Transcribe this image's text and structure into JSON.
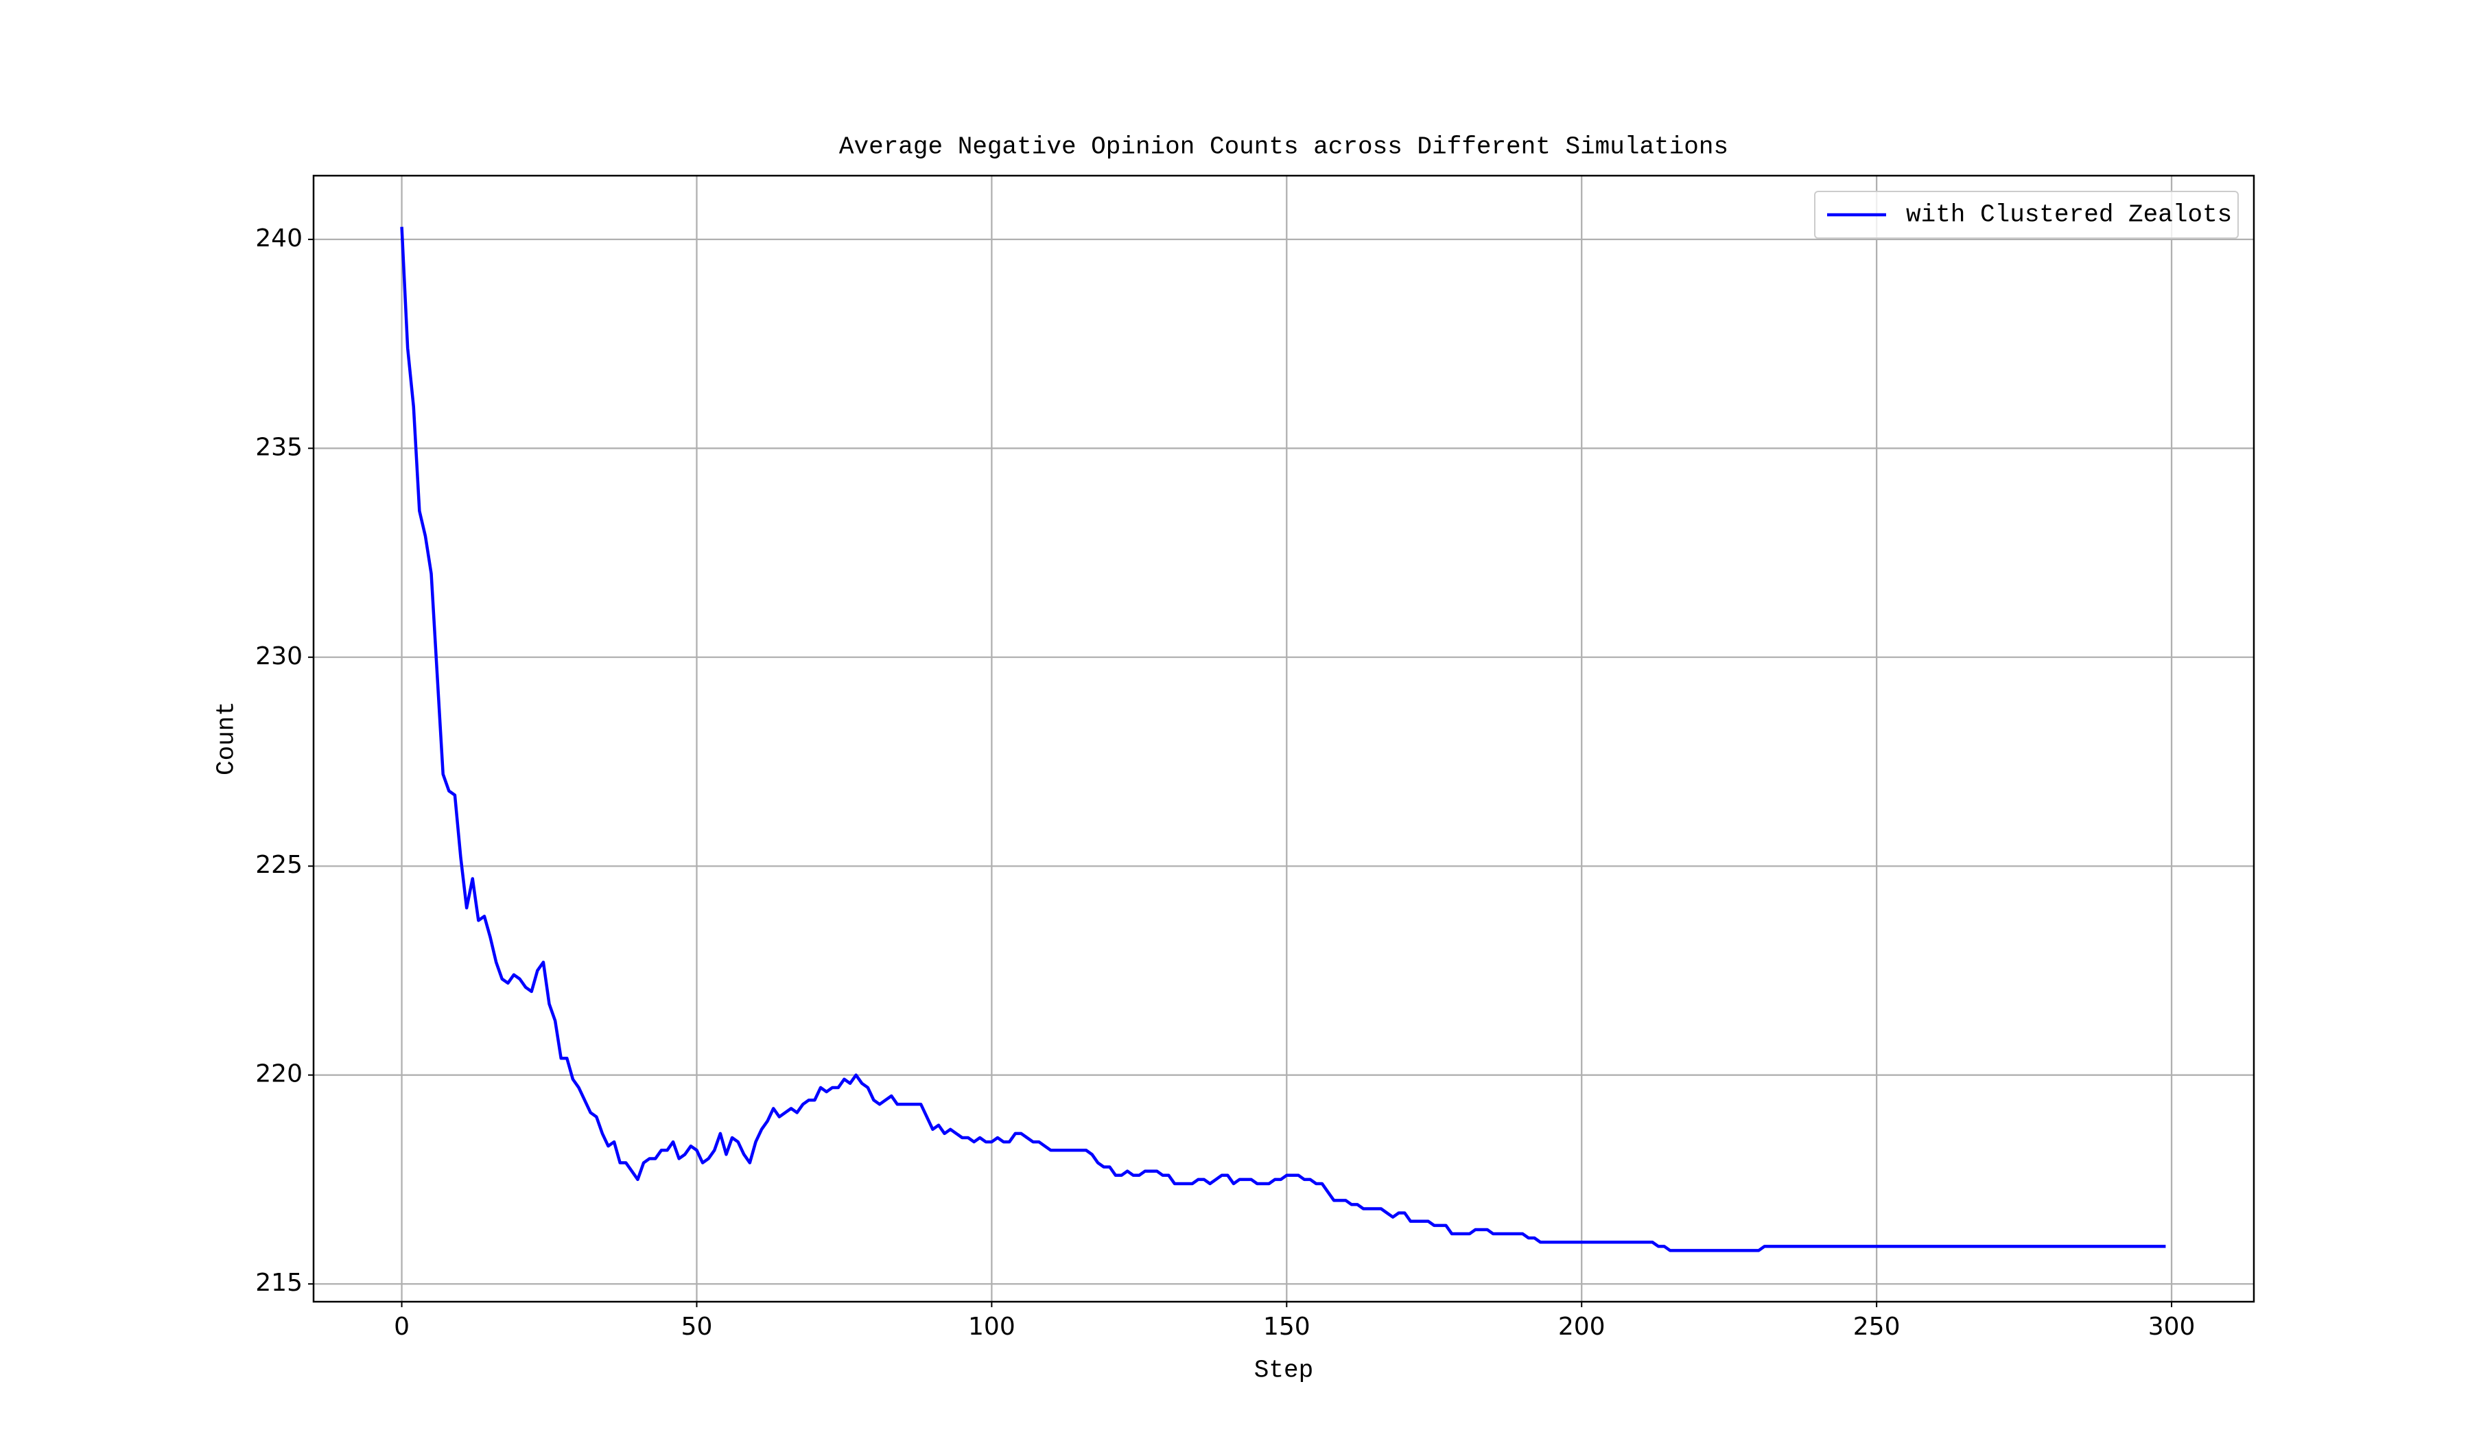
{
  "chart_data": {
    "type": "line",
    "title": "Average Negative Opinion Counts across Different Simulations",
    "x_label": "Step",
    "y_label": "Count",
    "grid": true,
    "legend": "upper right",
    "xlim": [
      -14.95,
      313.95
    ],
    "ylim": [
      214.575,
      241.525
    ],
    "xticks": [
      0,
      50,
      100,
      150,
      200,
      250,
      300
    ],
    "yticks": [
      215,
      220,
      225,
      230,
      235,
      240
    ],
    "x": [
      0,
      1,
      2,
      3,
      4,
      5,
      6,
      7,
      8,
      9,
      10,
      11,
      12,
      13,
      14,
      15,
      16,
      17,
      18,
      19,
      20,
      21,
      22,
      23,
      24,
      25,
      26,
      27,
      28,
      29,
      30,
      31,
      32,
      33,
      34,
      35,
      36,
      37,
      38,
      39,
      40,
      41,
      42,
      43,
      44,
      45,
      46,
      47,
      48,
      49,
      50,
      51,
      52,
      53,
      54,
      55,
      56,
      57,
      58,
      59,
      60,
      61,
      62,
      63,
      64,
      65,
      66,
      67,
      68,
      69,
      70,
      71,
      72,
      73,
      74,
      75,
      76,
      77,
      78,
      79,
      80,
      81,
      82,
      83,
      84,
      85,
      86,
      87,
      88,
      89,
      90,
      91,
      92,
      93,
      94,
      95,
      96,
      97,
      98,
      99,
      100,
      101,
      102,
      103,
      104,
      105,
      106,
      107,
      108,
      109,
      110,
      111,
      112,
      113,
      114,
      115,
      116,
      117,
      118,
      119,
      120,
      121,
      122,
      123,
      124,
      125,
      126,
      127,
      128,
      129,
      130,
      131,
      132,
      133,
      134,
      135,
      136,
      137,
      138,
      139,
      140,
      141,
      142,
      143,
      144,
      145,
      146,
      147,
      148,
      149,
      150,
      151,
      152,
      153,
      154,
      155,
      156,
      157,
      158,
      159,
      160,
      161,
      162,
      163,
      164,
      165,
      166,
      167,
      168,
      169,
      170,
      171,
      172,
      173,
      174,
      175,
      176,
      177,
      178,
      179,
      180,
      181,
      182,
      183,
      184,
      185,
      186,
      187,
      188,
      189,
      190,
      191,
      192,
      193,
      194,
      195,
      196,
      197,
      198,
      199,
      200,
      201,
      202,
      203,
      204,
      205,
      206,
      207,
      208,
      209,
      210,
      211,
      212,
      213,
      214,
      215,
      216,
      217,
      218,
      219,
      220,
      221,
      222,
      223,
      224,
      225,
      226,
      227,
      228,
      229,
      230,
      231,
      232,
      233,
      234,
      235,
      236,
      237,
      238,
      239,
      240,
      241,
      242,
      243,
      244,
      245,
      246,
      247,
      248,
      249,
      250,
      251,
      252,
      253,
      254,
      255,
      256,
      257,
      258,
      259,
      260,
      261,
      262,
      263,
      264,
      265,
      266,
      267,
      268,
      269,
      270,
      271,
      272,
      273,
      274,
      275,
      276,
      277,
      278,
      279,
      280,
      281,
      282,
      283,
      284,
      285,
      286,
      287,
      288,
      289,
      290,
      291,
      292,
      293,
      294,
      295,
      296,
      297,
      298,
      299
    ],
    "series": [
      {
        "name": "with Clustered Zealots",
        "color": "#0000ff",
        "values": [
          240.3,
          237.4,
          236.0,
          233.5,
          232.9,
          232.0,
          229.6,
          227.2,
          226.8,
          226.7,
          225.2,
          224.0,
          224.7,
          223.7,
          223.8,
          223.3,
          222.7,
          222.3,
          222.2,
          222.4,
          222.3,
          222.1,
          222.0,
          222.5,
          222.7,
          221.7,
          221.3,
          220.4,
          220.4,
          219.9,
          219.7,
          219.4,
          219.1,
          219.0,
          218.6,
          218.3,
          218.4,
          217.9,
          217.9,
          217.7,
          217.5,
          217.9,
          218.0,
          218.0,
          218.2,
          218.2,
          218.4,
          218.0,
          218.1,
          218.3,
          218.2,
          217.9,
          218.0,
          218.2,
          218.6,
          218.1,
          218.5,
          218.4,
          218.1,
          217.9,
          218.4,
          218.7,
          218.9,
          219.2,
          219.0,
          219.1,
          219.2,
          219.1,
          219.3,
          219.4,
          219.4,
          219.7,
          219.6,
          219.7,
          219.7,
          219.9,
          219.8,
          220.0,
          219.8,
          219.7,
          219.4,
          219.3,
          219.4,
          219.5,
          219.3,
          219.3,
          219.3,
          219.3,
          219.3,
          219.0,
          218.7,
          218.8,
          218.6,
          218.7,
          218.6,
          218.5,
          218.5,
          218.4,
          218.5,
          218.4,
          218.4,
          218.5,
          218.4,
          218.4,
          218.6,
          218.6,
          218.5,
          218.4,
          218.4,
          218.3,
          218.2,
          218.2,
          218.2,
          218.2,
          218.2,
          218.2,
          218.2,
          218.1,
          217.9,
          217.8,
          217.8,
          217.6,
          217.6,
          217.7,
          217.6,
          217.6,
          217.7,
          217.7,
          217.7,
          217.6,
          217.6,
          217.4,
          217.4,
          217.4,
          217.4,
          217.5,
          217.5,
          217.4,
          217.5,
          217.6,
          217.6,
          217.4,
          217.5,
          217.5,
          217.5,
          217.4,
          217.4,
          217.4,
          217.5,
          217.5,
          217.6,
          217.6,
          217.6,
          217.5,
          217.5,
          217.4,
          217.4,
          217.2,
          217.0,
          217.0,
          217.0,
          216.9,
          216.9,
          216.8,
          216.8,
          216.8,
          216.8,
          216.7,
          216.6,
          216.7,
          216.7,
          216.5,
          216.5,
          216.5,
          216.5,
          216.4,
          216.4,
          216.4,
          216.2,
          216.2,
          216.2,
          216.2,
          216.3,
          216.3,
          216.3,
          216.2,
          216.2,
          216.2,
          216.2,
          216.2,
          216.2,
          216.1,
          216.1,
          216.0,
          216.0,
          216.0,
          216.0,
          216.0,
          216.0,
          216.0,
          216.0,
          216.0,
          216.0,
          216.0,
          216.0,
          216.0,
          216.0,
          216.0,
          216.0,
          216.0,
          216.0,
          216.0,
          216.0,
          215.9,
          215.9,
          215.8,
          215.8,
          215.8,
          215.8,
          215.8,
          215.8,
          215.8,
          215.8,
          215.8,
          215.8,
          215.8,
          215.8,
          215.8,
          215.8,
          215.8,
          215.8,
          215.9,
          215.9,
          215.9,
          215.9,
          215.9,
          215.9,
          215.9,
          215.9,
          215.9,
          215.9,
          215.9,
          215.9,
          215.9,
          215.9,
          215.9,
          215.9,
          215.9,
          215.9,
          215.9,
          215.9,
          215.9,
          215.9,
          215.9,
          215.9,
          215.9,
          215.9,
          215.9,
          215.9,
          215.9,
          215.9,
          215.9,
          215.9,
          215.9,
          215.9,
          215.9,
          215.9,
          215.9,
          215.9,
          215.9,
          215.9,
          215.9,
          215.9,
          215.9,
          215.9,
          215.9,
          215.9,
          215.9,
          215.9,
          215.9,
          215.9,
          215.9,
          215.9,
          215.9,
          215.9,
          215.9,
          215.9,
          215.9,
          215.9,
          215.9,
          215.9,
          215.9,
          215.9,
          215.9,
          215.9,
          215.9,
          215.9,
          215.9,
          215.9,
          215.9
        ]
      }
    ]
  }
}
